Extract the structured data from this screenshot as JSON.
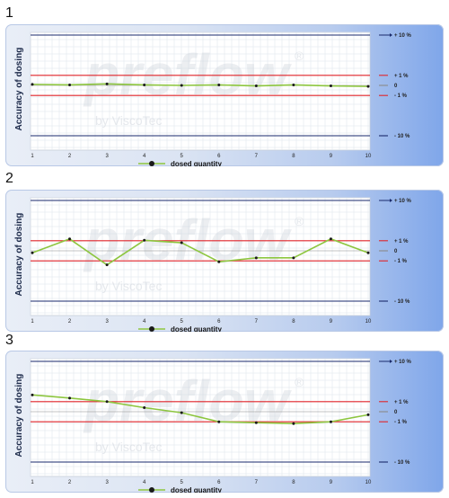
{
  "colors": {
    "tolerance_10": "#1a2a6c",
    "tolerance_1": "#e0242a",
    "zero_line": "#8a8a8a",
    "series": "#8dc63f",
    "point": "#1a1a1a",
    "grid": "#dde3ea",
    "panel_gradient_end": "#7fa6ea"
  },
  "watermark": {
    "main": "preflow",
    "registered": "®",
    "sub": "by ViscoTec"
  },
  "chart_data": [
    {
      "panel_number": "1",
      "type": "line",
      "ylabel": "Accuracy of dosing",
      "x": [
        1,
        2,
        3,
        4,
        5,
        6,
        7,
        8,
        9,
        10
      ],
      "x_tick_labels": [
        "1",
        "2",
        "3",
        "4",
        "5",
        "6",
        "7",
        "8",
        "9",
        "10"
      ],
      "reference_lines": [
        {
          "label": "+ 10 %",
          "value": 10,
          "color": "#1a2a6c",
          "arrow": true
        },
        {
          "label": "+ 1 %",
          "value": 1,
          "color": "#e0242a"
        },
        {
          "label": "0",
          "value": 0,
          "color": "#8a8a8a"
        },
        {
          "label": "- 1 %",
          "value": -1,
          "color": "#e0242a"
        },
        {
          "label": "- 10 %",
          "value": -10,
          "color": "#1a2a6c"
        }
      ],
      "series": [
        {
          "name": "dosed quantity",
          "values": [
            0.1,
            0.05,
            0.15,
            0.05,
            0.0,
            0.05,
            -0.05,
            0.05,
            -0.05,
            -0.1
          ]
        }
      ],
      "legend": {
        "label": "dosed quantity",
        "position": "bottom"
      },
      "grid": true
    },
    {
      "panel_number": "2",
      "type": "line",
      "ylabel": "Accuracy of dosing",
      "x": [
        1,
        2,
        3,
        4,
        5,
        6,
        7,
        8,
        9,
        10
      ],
      "x_tick_labels": [
        "1",
        "2",
        "3",
        "4",
        "5",
        "6",
        "7",
        "8",
        "9",
        "10"
      ],
      "reference_lines": [
        {
          "label": "+ 10 %",
          "value": 10,
          "color": "#1a2a6c",
          "arrow": true
        },
        {
          "label": "+ 1 %",
          "value": 1,
          "color": "#e0242a"
        },
        {
          "label": "0",
          "value": 0,
          "color": "#8a8a8a"
        },
        {
          "label": "- 1 %",
          "value": -1,
          "color": "#e0242a"
        },
        {
          "label": "- 10 %",
          "value": -10,
          "color": "#1a2a6c"
        }
      ],
      "series": [
        {
          "name": "dosed quantity",
          "values": [
            -0.2,
            1.4,
            -1.9,
            1.1,
            0.8,
            -1.2,
            -0.7,
            -0.7,
            1.4,
            -0.2
          ]
        }
      ],
      "legend": {
        "label": "dosed quantity",
        "position": "bottom"
      },
      "grid": true
    },
    {
      "panel_number": "3",
      "type": "line",
      "ylabel": "Accuracy of dosing",
      "x": [
        1,
        2,
        3,
        4,
        5,
        6,
        7,
        8,
        9,
        10
      ],
      "x_tick_labels": [
        "1",
        "2",
        "3",
        "4",
        "5",
        "6",
        "7",
        "8",
        "9",
        "10"
      ],
      "reference_lines": [
        {
          "label": "+ 10 %",
          "value": 10,
          "color": "#1a2a6c",
          "arrow": true
        },
        {
          "label": "+ 1 %",
          "value": 1,
          "color": "#e0242a"
        },
        {
          "label": "0",
          "value": 0,
          "color": "#8a8a8a"
        },
        {
          "label": "- 1 %",
          "value": -1,
          "color": "#e0242a"
        },
        {
          "label": "- 10 %",
          "value": -10,
          "color": "#1a2a6c"
        }
      ],
      "series": [
        {
          "name": "dosed quantity",
          "values": [
            2.5,
            1.8,
            1.0,
            0.4,
            -0.1,
            -1.0,
            -1.2,
            -1.4,
            -1.0,
            -0.3
          ]
        }
      ],
      "legend": {
        "label": "dosed quantity",
        "position": "bottom"
      },
      "grid": true
    }
  ]
}
